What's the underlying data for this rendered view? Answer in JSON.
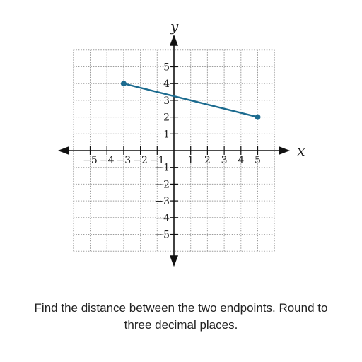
{
  "chart_data": {
    "type": "line",
    "x_label": "x",
    "y_label": "y",
    "xlim": [
      -6,
      6
    ],
    "ylim": [
      -6,
      6
    ],
    "x_ticks": [
      -5,
      -4,
      -3,
      -2,
      -1,
      1,
      2,
      3,
      4,
      5
    ],
    "y_ticks": [
      -5,
      -4,
      -3,
      -2,
      -1,
      1,
      2,
      3,
      4,
      5
    ],
    "grid": true,
    "segment": {
      "points": [
        [
          -3,
          4
        ],
        [
          5,
          2
        ]
      ],
      "color": "#1c6b8f"
    }
  },
  "question_text": "Find the distance between the two endpoints. Round to three decimal places."
}
